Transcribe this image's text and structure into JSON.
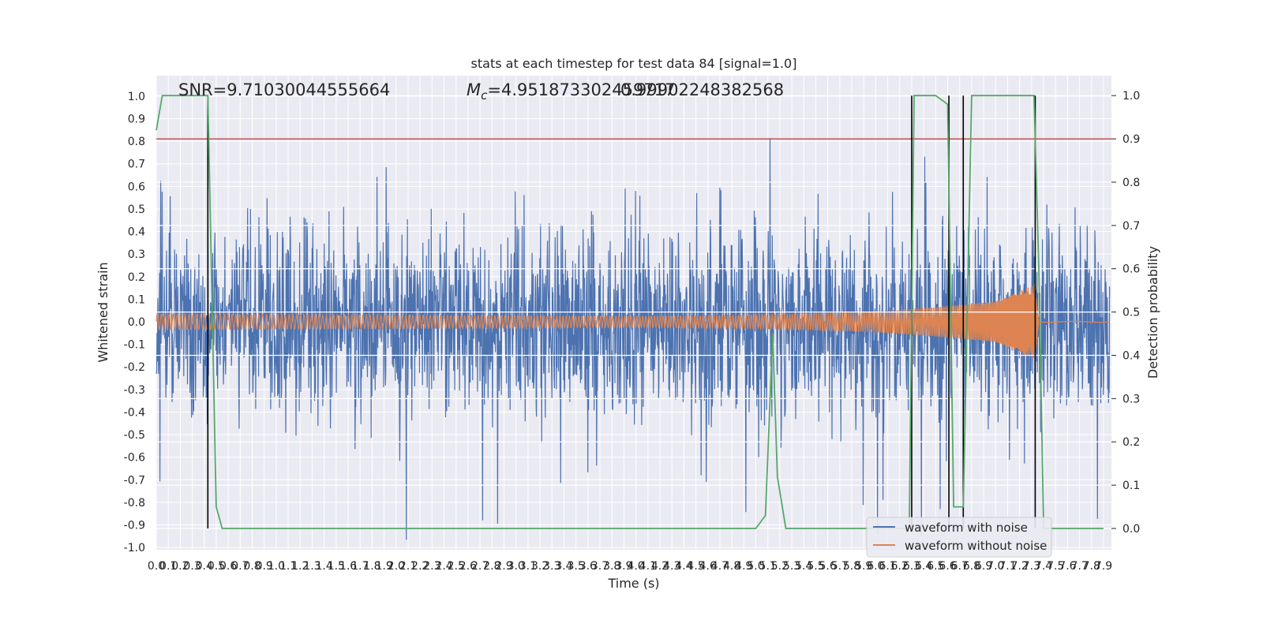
{
  "chart_data": {
    "type": "line",
    "title": "stats at each timestep for test data 84 [signal=1.0]",
    "xlabel": "Time (s)",
    "ylabel": "Whitened strain",
    "ylabel_right": "Detection probability",
    "xlim": [
      0.0,
      7.95
    ],
    "ylim": [
      -1.05,
      1.05
    ],
    "ylim_right": [
      -0.05,
      1.05
    ],
    "x_ticks": [
      "0.0",
      "0.1",
      "0.2",
      "0.3",
      "0.4",
      "0.5",
      "0.6",
      "0.7",
      "0.8",
      "0.9",
      "1.0",
      "1.1",
      "1.2",
      "1.3",
      "1.4",
      "1.5",
      "1.6",
      "1.7",
      "1.8",
      "1.9",
      "2.0",
      "2.1",
      "2.2",
      "2.3",
      "2.4",
      "2.5",
      "2.6",
      "2.7",
      "2.8",
      "2.9",
      "3.0",
      "3.1",
      "3.2",
      "3.3",
      "3.4",
      "3.5",
      "3.6",
      "3.7",
      "3.8",
      "3.9",
      "4.0",
      "4.1",
      "4.2",
      "4.3",
      "4.4",
      "4.5",
      "4.6",
      "4.7",
      "4.8",
      "4.9",
      "5.0",
      "5.1",
      "5.2",
      "5.3",
      "5.4",
      "5.5",
      "5.6",
      "5.7",
      "5.8",
      "5.9",
      "6.0",
      "6.1",
      "6.2",
      "6.3",
      "6.4",
      "6.5",
      "6.6",
      "6.7",
      "6.8",
      "6.9",
      "7.0",
      "7.1",
      "7.2",
      "7.3",
      "7.4",
      "7.5",
      "7.6",
      "7.7",
      "7.8",
      "7.9"
    ],
    "y_ticks": [
      "1.0",
      "0.9",
      "0.8",
      "0.7",
      "0.6",
      "0.5",
      "0.4",
      "0.3",
      "0.2",
      "0.1",
      "0.0",
      "-0.1",
      "-0.2",
      "-0.3",
      "-0.4",
      "-0.5",
      "-0.6",
      "-0.7",
      "-0.8",
      "-0.9",
      "-1.0"
    ],
    "y_ticks_right": [
      "1.0",
      "0.9",
      "0.8",
      "0.7",
      "0.6",
      "0.5",
      "0.4",
      "0.3",
      "0.2",
      "0.1",
      "0.0"
    ],
    "annotations": {
      "snr": "SNR=9.71030044555664",
      "mc_prefix": "M",
      "mc_sub": "c",
      "mc_value": "=4.951873302459717",
      "overlap": "0.99902248382568"
    },
    "threshold_right": 0.9,
    "detection_markers_x": [
      0.43,
      6.3,
      6.61,
      6.73,
      7.33
    ],
    "series": [
      {
        "name": "waveform with noise",
        "color": "#4c72b0",
        "noise_amplitude": 0.6
      },
      {
        "name": "waveform without noise",
        "color": "#dd8452",
        "envelope": [
          [
            0.0,
            0.035
          ],
          [
            2.0,
            0.03
          ],
          [
            4.0,
            0.025
          ],
          [
            5.0,
            0.03
          ],
          [
            6.0,
            0.045
          ],
          [
            6.5,
            0.065
          ],
          [
            7.0,
            0.09
          ],
          [
            7.3,
            0.16
          ],
          [
            7.33,
            0.17
          ],
          [
            7.36,
            0.0
          ]
        ]
      },
      {
        "name": "Detection probability",
        "color": "#55a868",
        "axis": "right",
        "x": [
          0.0,
          0.05,
          0.1,
          0.2,
          0.3,
          0.43,
          0.5,
          0.55,
          0.6,
          5.0,
          5.08,
          5.14,
          5.18,
          5.25,
          5.3,
          6.28,
          6.32,
          6.5,
          6.6,
          6.65,
          6.73,
          6.8,
          7.32,
          7.36,
          7.4,
          7.9
        ],
        "y": [
          0.92,
          1.0,
          1.0,
          1.0,
          1.0,
          1.0,
          0.05,
          0.0,
          0.0,
          0.0,
          0.03,
          0.45,
          0.12,
          0.0,
          0.0,
          0.0,
          1.0,
          1.0,
          0.98,
          0.05,
          0.05,
          1.0,
          1.0,
          0.6,
          0.0,
          0.0
        ]
      }
    ],
    "legend": [
      "waveform with noise",
      "waveform without noise"
    ],
    "legend_location": "lower right",
    "grid": true,
    "colors": {
      "background": "#eaeaf2",
      "grid": "#ffffff",
      "threshold": "#c44e52",
      "marker": "#000000"
    }
  }
}
